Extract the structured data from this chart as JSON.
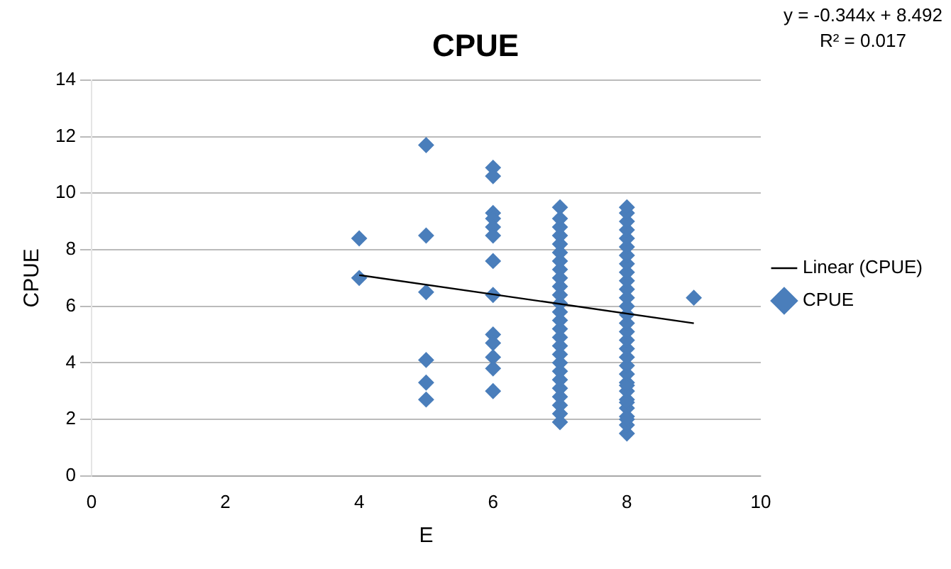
{
  "chart_data": {
    "type": "scatter",
    "title": "CPUE",
    "xlabel": "E",
    "ylabel": "CPUE",
    "annotations": [
      "y = -0.344x + 8.492",
      "R² = 0.017"
    ],
    "xlim": [
      0,
      10
    ],
    "xticks": [
      0,
      2,
      4,
      6,
      8,
      10
    ],
    "ylim": [
      0,
      14
    ],
    "yticks": [
      0,
      2,
      4,
      6,
      8,
      10,
      12,
      14
    ],
    "grid": "y",
    "legend": "right",
    "series": [
      {
        "name": "CPUE",
        "color": "#4a7ebb",
        "marker": "diamond",
        "x": [
          4,
          4,
          5,
          5,
          5,
          5,
          5,
          5,
          6,
          6,
          6,
          6,
          6,
          6,
          6,
          6,
          6,
          6,
          6,
          6,
          6,
          7,
          7,
          7,
          7,
          7,
          7,
          7,
          7,
          7,
          7,
          7,
          7,
          7,
          7,
          7,
          7,
          7,
          7,
          7,
          7,
          7,
          7,
          7,
          7,
          7,
          7,
          8,
          8,
          8,
          8,
          8,
          8,
          8,
          8,
          8,
          8,
          8,
          8,
          8,
          8,
          8,
          8,
          8,
          8,
          8,
          8,
          8,
          8,
          8,
          8,
          8,
          8,
          8,
          8,
          8,
          8,
          8,
          9
        ],
        "values": [
          8.4,
          7.0,
          11.7,
          8.5,
          6.5,
          4.1,
          3.3,
          2.7,
          10.9,
          10.6,
          9.3,
          9.1,
          8.8,
          8.5,
          7.6,
          6.4,
          5.0,
          4.7,
          4.2,
          3.8,
          3.0,
          1.9,
          2.2,
          2.5,
          2.8,
          3.1,
          3.4,
          3.7,
          4.0,
          4.3,
          4.6,
          4.9,
          5.2,
          5.5,
          5.8,
          6.1,
          6.4,
          6.7,
          7.0,
          7.3,
          7.6,
          7.9,
          8.2,
          8.5,
          8.8,
          9.1,
          9.5,
          1.5,
          1.8,
          2.1,
          2.4,
          2.7,
          3.0,
          3.3,
          3.6,
          3.9,
          4.2,
          4.5,
          4.8,
          5.1,
          5.4,
          5.7,
          6.0,
          6.3,
          6.6,
          6.9,
          7.2,
          7.5,
          7.8,
          8.1,
          8.4,
          8.7,
          9.0,
          9.3,
          9.5,
          2.0,
          2.6,
          3.2,
          6.3
        ]
      },
      {
        "name": "Linear (CPUE)",
        "type": "line",
        "color": "#000000",
        "line_style": "solid",
        "x": [
          4,
          9
        ],
        "values": [
          7.1,
          5.4
        ]
      }
    ]
  }
}
